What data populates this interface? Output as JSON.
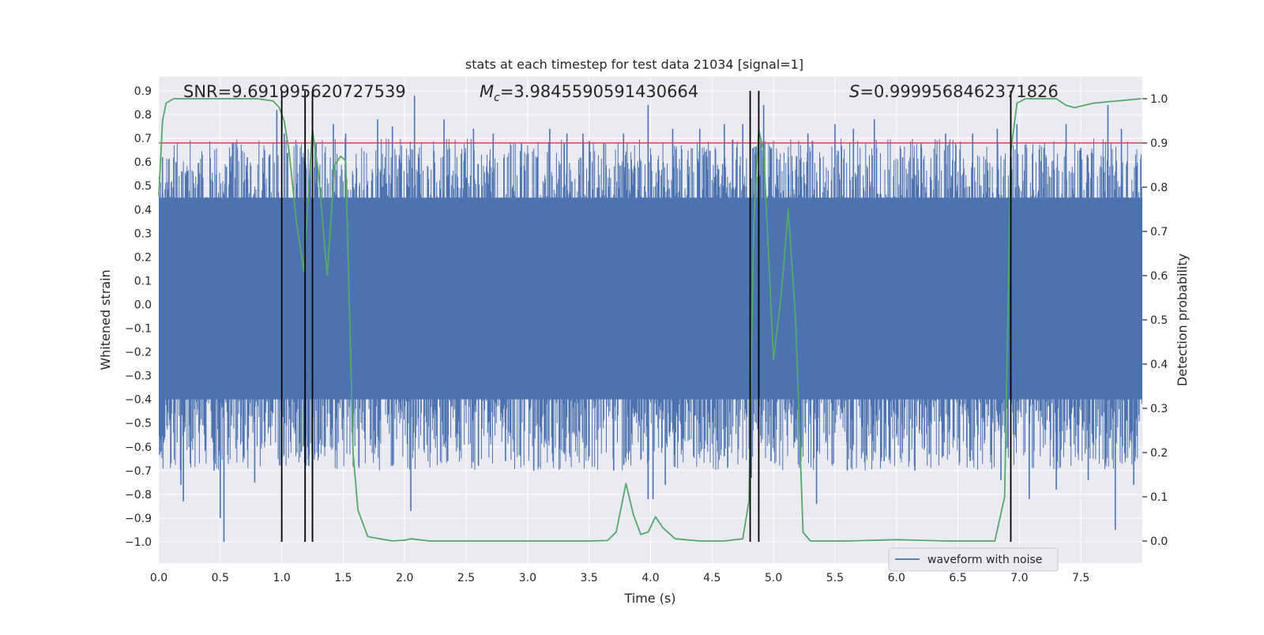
{
  "chart_data": {
    "type": "line",
    "title": "stats at each timestep for test data 21034 [signal=1]",
    "xlabel": "Time (s)",
    "ylabel": "Whitened strain",
    "y2label": "Detection probability",
    "xlim": [
      0.0,
      8.0
    ],
    "ylim": [
      -1.09,
      0.96
    ],
    "y2lim": [
      -0.05,
      1.05
    ],
    "x_ticks": [
      0.0,
      0.5,
      1.0,
      1.5,
      2.0,
      2.5,
      3.0,
      3.5,
      4.0,
      4.5,
      5.0,
      5.5,
      6.0,
      6.5,
      7.0,
      7.5
    ],
    "x_tick_labels": [
      "0.0",
      "0.5",
      "1.0",
      "1.5",
      "2.0",
      "2.5",
      "3.0",
      "3.5",
      "4.0",
      "4.5",
      "5.0",
      "5.5",
      "6.0",
      "6.5",
      "7.0",
      "7.5"
    ],
    "y_ticks": [
      0.9,
      0.8,
      0.7,
      0.6,
      0.5,
      0.4,
      0.3,
      0.2,
      0.1,
      0.0,
      -0.1,
      -0.2,
      -0.3,
      -0.4,
      -0.5,
      -0.6,
      -0.7,
      -0.8,
      -0.9,
      -1.0
    ],
    "y_tick_labels": [
      "0.9",
      "0.8",
      "0.7",
      "0.6",
      "0.5",
      "0.4",
      "0.3",
      "0.2",
      "0.1",
      "0.0",
      "−0.1",
      "−0.2",
      "−0.3",
      "−0.4",
      "−0.5",
      "−0.6",
      "−0.7",
      "−0.8",
      "−0.9",
      "−1.0"
    ],
    "y2_ticks": [
      1.0,
      0.9,
      0.8,
      0.7,
      0.6,
      0.5,
      0.4,
      0.3,
      0.2,
      0.1,
      0.0
    ],
    "y2_tick_labels": [
      "1.0",
      "0.9",
      "0.8",
      "0.7",
      "0.6",
      "0.5",
      "0.4",
      "0.3",
      "0.2",
      "0.1",
      "0.0"
    ],
    "grid": true,
    "legend_placement": "lower right",
    "threshold": {
      "axis": "y2",
      "value": 0.9,
      "color": "#c44e52"
    },
    "vertical_markers": {
      "x": [
        1.0,
        1.19,
        1.25,
        4.81,
        4.88,
        6.93
      ],
      "ymin": -1.0,
      "ymax": 0.9,
      "color": "#000000"
    },
    "annotations": [
      {
        "text": "SNR=9.691995620727539"
      },
      {
        "text_prefix": "M",
        "text_sub": "c",
        "text_rest": "=3.9845590591430664"
      },
      {
        "text_prefix": "S",
        "text_rest": "=0.9999568462371826"
      }
    ],
    "series": [
      {
        "name": "waveform with noise",
        "axis": "y",
        "color": "#4c72b0",
        "envelope": {
          "upper": 0.45,
          "lower": -0.4,
          "typical_spike_high": 0.7,
          "typical_spike_low": -0.7
        },
        "peaks": [
          [
            0.03,
            0.62
          ],
          [
            0.14,
            0.6
          ],
          [
            0.35,
            0.55
          ],
          [
            0.55,
            0.58
          ],
          [
            0.6,
            0.68
          ],
          [
            0.72,
            0.62
          ],
          [
            0.86,
            0.65
          ],
          [
            0.96,
            0.82
          ],
          [
            1.02,
            0.72
          ],
          [
            1.28,
            0.68
          ],
          [
            1.42,
            0.76
          ],
          [
            1.52,
            0.72
          ],
          [
            1.78,
            0.78
          ],
          [
            1.9,
            0.75
          ],
          [
            2.08,
            0.88
          ],
          [
            2.32,
            0.78
          ],
          [
            2.56,
            0.74
          ],
          [
            2.72,
            0.72
          ],
          [
            2.95,
            0.68
          ],
          [
            3.18,
            0.74
          ],
          [
            3.32,
            0.72
          ],
          [
            3.45,
            0.72
          ],
          [
            3.62,
            0.68
          ],
          [
            3.78,
            0.72
          ],
          [
            3.98,
            0.84
          ],
          [
            4.18,
            0.74
          ],
          [
            4.4,
            0.74
          ],
          [
            4.6,
            0.76
          ],
          [
            4.75,
            0.76
          ],
          [
            4.92,
            0.84
          ],
          [
            5.12,
            0.62
          ],
          [
            5.28,
            0.72
          ],
          [
            5.5,
            0.76
          ],
          [
            5.65,
            0.74
          ],
          [
            5.82,
            0.78
          ],
          [
            6.05,
            0.62
          ],
          [
            6.2,
            0.68
          ],
          [
            6.4,
            0.72
          ],
          [
            6.62,
            0.72
          ],
          [
            6.82,
            0.74
          ],
          [
            6.98,
            0.76
          ],
          [
            7.2,
            0.66
          ],
          [
            7.38,
            0.76
          ],
          [
            7.5,
            0.66
          ],
          [
            7.72,
            0.84
          ],
          [
            7.83,
            0.74
          ]
        ],
        "troughs": [
          [
            0.02,
            -0.62
          ],
          [
            0.18,
            -0.76
          ],
          [
            0.2,
            -0.83
          ],
          [
            0.45,
            -0.7
          ],
          [
            0.5,
            -0.9
          ],
          [
            0.53,
            -1.0
          ],
          [
            0.78,
            -0.75
          ],
          [
            1.0,
            -0.52
          ],
          [
            1.16,
            -0.62
          ],
          [
            1.22,
            -0.68
          ],
          [
            1.25,
            -0.73
          ],
          [
            1.58,
            -0.52
          ],
          [
            1.9,
            -0.68
          ],
          [
            2.05,
            -0.87
          ],
          [
            2.35,
            -0.66
          ],
          [
            2.6,
            -0.68
          ],
          [
            2.82,
            -0.66
          ],
          [
            3.05,
            -0.7
          ],
          [
            3.3,
            -0.62
          ],
          [
            3.5,
            -0.64
          ],
          [
            3.7,
            -0.7
          ],
          [
            3.98,
            -0.82
          ],
          [
            4.02,
            -0.82
          ],
          [
            4.12,
            -0.76
          ],
          [
            4.35,
            -0.64
          ],
          [
            4.6,
            -0.64
          ],
          [
            4.82,
            -0.73
          ],
          [
            4.98,
            -0.66
          ],
          [
            5.22,
            -0.66
          ],
          [
            5.35,
            -0.84
          ],
          [
            5.6,
            -0.7
          ],
          [
            5.9,
            -0.66
          ],
          [
            6.15,
            -0.7
          ],
          [
            6.38,
            -0.64
          ],
          [
            6.6,
            -0.66
          ],
          [
            6.85,
            -0.74
          ],
          [
            7.08,
            -0.82
          ],
          [
            7.3,
            -0.78
          ],
          [
            7.56,
            -0.74
          ],
          [
            7.78,
            -0.95
          ],
          [
            7.93,
            -0.76
          ]
        ]
      },
      {
        "name": "",
        "axis": "y2",
        "color": "#55a868",
        "x": [
          0.0,
          0.03,
          0.06,
          0.12,
          0.2,
          0.5,
          0.8,
          0.93,
          0.98,
          1.02,
          1.06,
          1.12,
          1.18,
          1.22,
          1.25,
          1.3,
          1.37,
          1.43,
          1.48,
          1.52,
          1.58,
          1.62,
          1.7,
          1.8,
          1.9,
          2.0,
          2.05,
          2.2,
          2.5,
          3.0,
          3.5,
          3.65,
          3.72,
          3.8,
          3.86,
          3.92,
          3.98,
          4.04,
          4.1,
          4.2,
          4.4,
          4.6,
          4.75,
          4.8,
          4.84,
          4.88,
          4.92,
          5.0,
          5.06,
          5.12,
          5.18,
          5.24,
          5.3,
          5.6,
          6.0,
          6.4,
          6.8,
          6.88,
          6.93,
          6.98,
          7.05,
          7.2,
          7.3,
          7.38,
          7.45,
          7.6,
          7.99
        ],
        "values": [
          0.78,
          0.95,
          0.99,
          1.0,
          1.0,
          1.0,
          1.0,
          0.995,
          0.98,
          0.95,
          0.88,
          0.72,
          0.61,
          0.8,
          0.93,
          0.83,
          0.6,
          0.85,
          0.87,
          0.86,
          0.2,
          0.07,
          0.01,
          0.005,
          0.0,
          0.002,
          0.005,
          0.0,
          0.0,
          0.0,
          0.0,
          0.001,
          0.02,
          0.13,
          0.06,
          0.015,
          0.02,
          0.055,
          0.03,
          0.005,
          0.0,
          0.0,
          0.005,
          0.09,
          0.72,
          0.93,
          0.88,
          0.41,
          0.55,
          0.75,
          0.5,
          0.02,
          0.0,
          0.0,
          0.003,
          0.0,
          0.0,
          0.1,
          0.88,
          0.99,
          1.0,
          1.0,
          1.0,
          0.985,
          0.98,
          0.99,
          1.0
        ]
      }
    ]
  }
}
